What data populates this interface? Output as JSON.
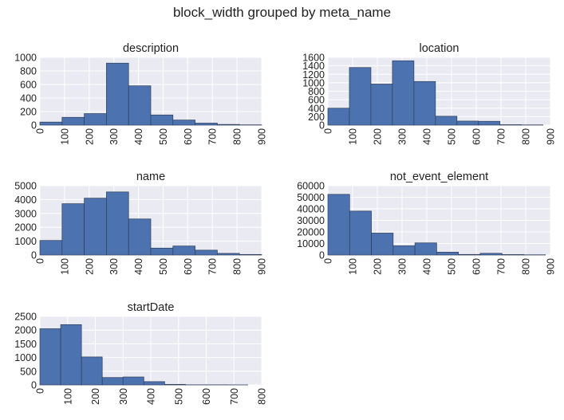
{
  "figure": {
    "title": "block_width grouped by meta_name"
  },
  "colors": {
    "background": "#eaeaf2",
    "grid": "#ffffff",
    "bar_fill": "#4c72b0",
    "bar_edge": "#2f3e5a"
  },
  "chart_data": [
    {
      "type": "bar",
      "title": "description",
      "xlim": [
        0,
        900
      ],
      "ylim": [
        0,
        1000
      ],
      "xticks": [
        "0",
        "100",
        "200",
        "300",
        "400",
        "500",
        "600",
        "700",
        "800",
        "900"
      ],
      "yticks": [
        "0",
        "200",
        "400",
        "600",
        "800",
        "1000"
      ],
      "bin_edges": [
        0,
        90,
        180,
        270,
        360,
        450,
        540,
        630,
        720,
        810,
        900
      ],
      "values": [
        45,
        115,
        170,
        915,
        580,
        150,
        75,
        30,
        10,
        4
      ],
      "grid": true
    },
    {
      "type": "bar",
      "title": "location",
      "xlim": [
        0,
        900
      ],
      "ylim": [
        0,
        1600
      ],
      "xticks": [
        "0",
        "100",
        "200",
        "300",
        "400",
        "500",
        "600",
        "700",
        "800",
        "900"
      ],
      "yticks": [
        "0",
        "200",
        "400",
        "600",
        "800",
        "1000",
        "1200",
        "1400",
        "1600"
      ],
      "bin_edges": [
        0,
        87,
        174,
        261,
        348,
        435,
        522,
        609,
        696,
        783,
        870
      ],
      "values": [
        400,
        1360,
        970,
        1520,
        1030,
        210,
        95,
        90,
        10,
        5
      ],
      "grid": true
    },
    {
      "type": "bar",
      "title": "name",
      "xlim": [
        0,
        900
      ],
      "ylim": [
        0,
        5000
      ],
      "xticks": [
        "0",
        "100",
        "200",
        "300",
        "400",
        "500",
        "600",
        "700",
        "800",
        "900"
      ],
      "yticks": [
        "0",
        "1000",
        "2000",
        "3000",
        "4000",
        "5000"
      ],
      "bin_edges": [
        0,
        90,
        180,
        270,
        360,
        450,
        540,
        630,
        720,
        810,
        900
      ],
      "values": [
        1050,
        3700,
        4100,
        4550,
        2600,
        500,
        650,
        350,
        120,
        40
      ],
      "grid": true
    },
    {
      "type": "bar",
      "title": "not_event_element",
      "xlim": [
        0,
        900
      ],
      "ylim": [
        0,
        60000
      ],
      "xticks": [
        "0",
        "100",
        "200",
        "300",
        "400",
        "500",
        "600",
        "700",
        "800",
        "900"
      ],
      "yticks": [
        "0",
        "10000",
        "20000",
        "30000",
        "40000",
        "50000",
        "60000"
      ],
      "bin_edges": [
        0,
        88,
        176,
        264,
        352,
        440,
        528,
        616,
        704,
        792,
        880
      ],
      "values": [
        52500,
        38000,
        19000,
        8000,
        10500,
        2500,
        500,
        1500,
        400,
        200
      ],
      "grid": true
    },
    {
      "type": "bar",
      "title": "startDate",
      "xlim": [
        0,
        800
      ],
      "ylim": [
        0,
        2500
      ],
      "xticks": [
        "0",
        "100",
        "200",
        "300",
        "400",
        "500",
        "600",
        "700",
        "800"
      ],
      "yticks": [
        "0",
        "500",
        "1000",
        "1500",
        "2000",
        "2500"
      ],
      "bin_edges": [
        0,
        75,
        150,
        225,
        300,
        375,
        450,
        525,
        600,
        675,
        750
      ],
      "values": [
        2050,
        2200,
        1020,
        270,
        290,
        120,
        20,
        5,
        5,
        3
      ],
      "grid": true
    }
  ]
}
